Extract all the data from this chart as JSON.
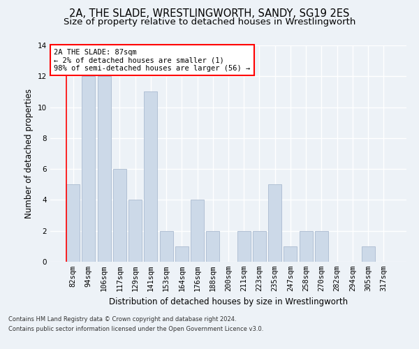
{
  "title_line1": "2A, THE SLADE, WRESTLINGWORTH, SANDY, SG19 2ES",
  "title_line2": "Size of property relative to detached houses in Wrestlingworth",
  "xlabel": "Distribution of detached houses by size in Wrestlingworth",
  "ylabel": "Number of detached properties",
  "bar_color": "#ccd9e8",
  "bar_edge_color": "#aabbd0",
  "categories": [
    "82sqm",
    "94sqm",
    "106sqm",
    "117sqm",
    "129sqm",
    "141sqm",
    "153sqm",
    "164sqm",
    "176sqm",
    "188sqm",
    "200sqm",
    "211sqm",
    "223sqm",
    "235sqm",
    "247sqm",
    "258sqm",
    "270sqm",
    "282sqm",
    "294sqm",
    "305sqm",
    "317sqm"
  ],
  "values": [
    5,
    12,
    12,
    6,
    4,
    11,
    2,
    1,
    4,
    2,
    0,
    2,
    2,
    5,
    1,
    2,
    2,
    0,
    0,
    1,
    0
  ],
  "ylim": [
    0,
    14
  ],
  "yticks": [
    0,
    2,
    4,
    6,
    8,
    10,
    12,
    14
  ],
  "annotation_text": "2A THE SLADE: 87sqm\n← 2% of detached houses are smaller (1)\n98% of semi-detached houses are larger (56) →",
  "annotation_box_color": "white",
  "annotation_box_edge_color": "red",
  "footer_line1": "Contains HM Land Registry data © Crown copyright and database right 2024.",
  "footer_line2": "Contains public sector information licensed under the Open Government Licence v3.0.",
  "background_color": "#edf2f7",
  "grid_color": "#ffffff",
  "title_fontsize": 10.5,
  "subtitle_fontsize": 9.5,
  "tick_fontsize": 7.5,
  "ylabel_fontsize": 8.5,
  "xlabel_fontsize": 8.5,
  "footer_fontsize": 6.0
}
